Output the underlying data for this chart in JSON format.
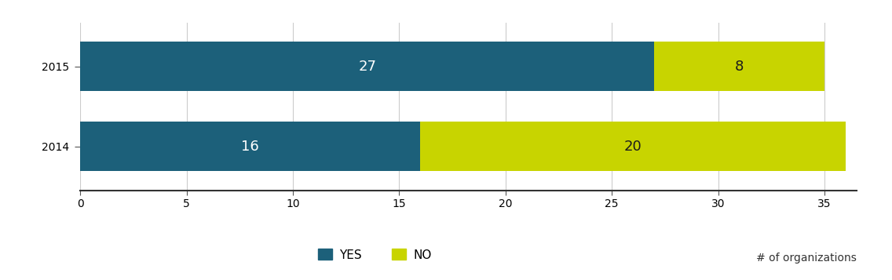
{
  "categories": [
    "2015",
    "2014"
  ],
  "yes_values": [
    27,
    16
  ],
  "no_values": [
    8,
    20
  ],
  "yes_color": "#1c607a",
  "no_color": "#c8d400",
  "yes_label": "YES",
  "no_label": "NO",
  "text_color_yes": "#ffffff",
  "text_color_no": "#1c1c1c",
  "xlim": [
    0,
    36.5
  ],
  "xticks": [
    0,
    5,
    10,
    15,
    20,
    25,
    30,
    35
  ],
  "bar_height": 0.62,
  "label_fontsize": 13,
  "tick_fontsize": 10,
  "legend_fontsize": 11,
  "note_text": "# of organizations",
  "note_fontsize": 10,
  "grid_color": "#cccccc",
  "background_color": "#ffffff"
}
